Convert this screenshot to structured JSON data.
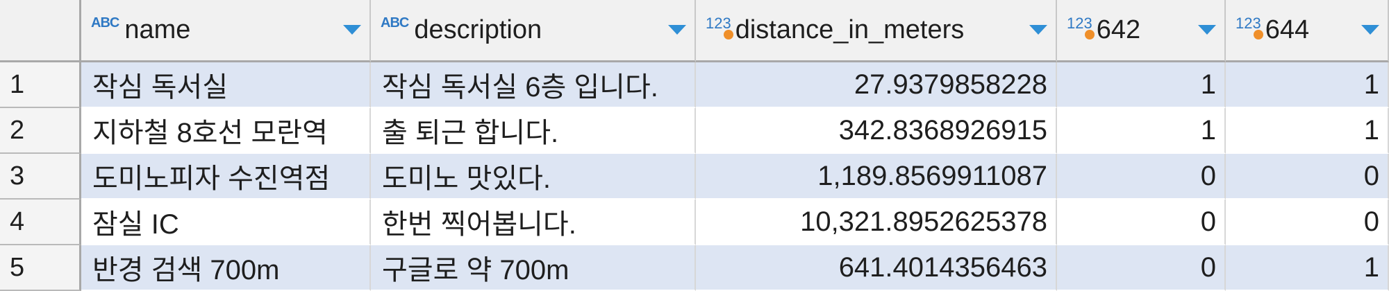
{
  "columns": [
    {
      "type": "ABC",
      "label": "name"
    },
    {
      "type": "ABC",
      "label": "description"
    },
    {
      "type": "123",
      "label": "distance_in_meters"
    },
    {
      "type": "123",
      "label": "642"
    },
    {
      "type": "123",
      "label": "644"
    }
  ],
  "rows": [
    {
      "num": "1",
      "name": "작심 독서실",
      "description": "작심 독서실 6층 입니다.",
      "distance": "27.9379858228",
      "c642": "1",
      "c644": "1"
    },
    {
      "num": "2",
      "name": "지하철 8호선 모란역",
      "description": "출 퇴근 합니다.",
      "distance": "342.8368926915",
      "c642": "1",
      "c644": "1"
    },
    {
      "num": "3",
      "name": "도미노피자 수진역점",
      "description": "도미노 맛있다.",
      "distance": "1,189.8569911087",
      "c642": "0",
      "c644": "0"
    },
    {
      "num": "4",
      "name": "잠실 IC",
      "description": "한번 찍어봅니다.",
      "distance": "10,321.8952625378",
      "c642": "0",
      "c644": "0"
    },
    {
      "num": "5",
      "name": "반경 검색 700m",
      "description": "구글로 약 700m",
      "distance": "641.4014356463",
      "c642": "0",
      "c644": "1"
    }
  ],
  "colors": {
    "row_alt": "#dde5f3",
    "type_icon": "#2f79c4",
    "numeric_dot": "#ef8f2a",
    "sort_arrow": "#2f8fd6"
  }
}
